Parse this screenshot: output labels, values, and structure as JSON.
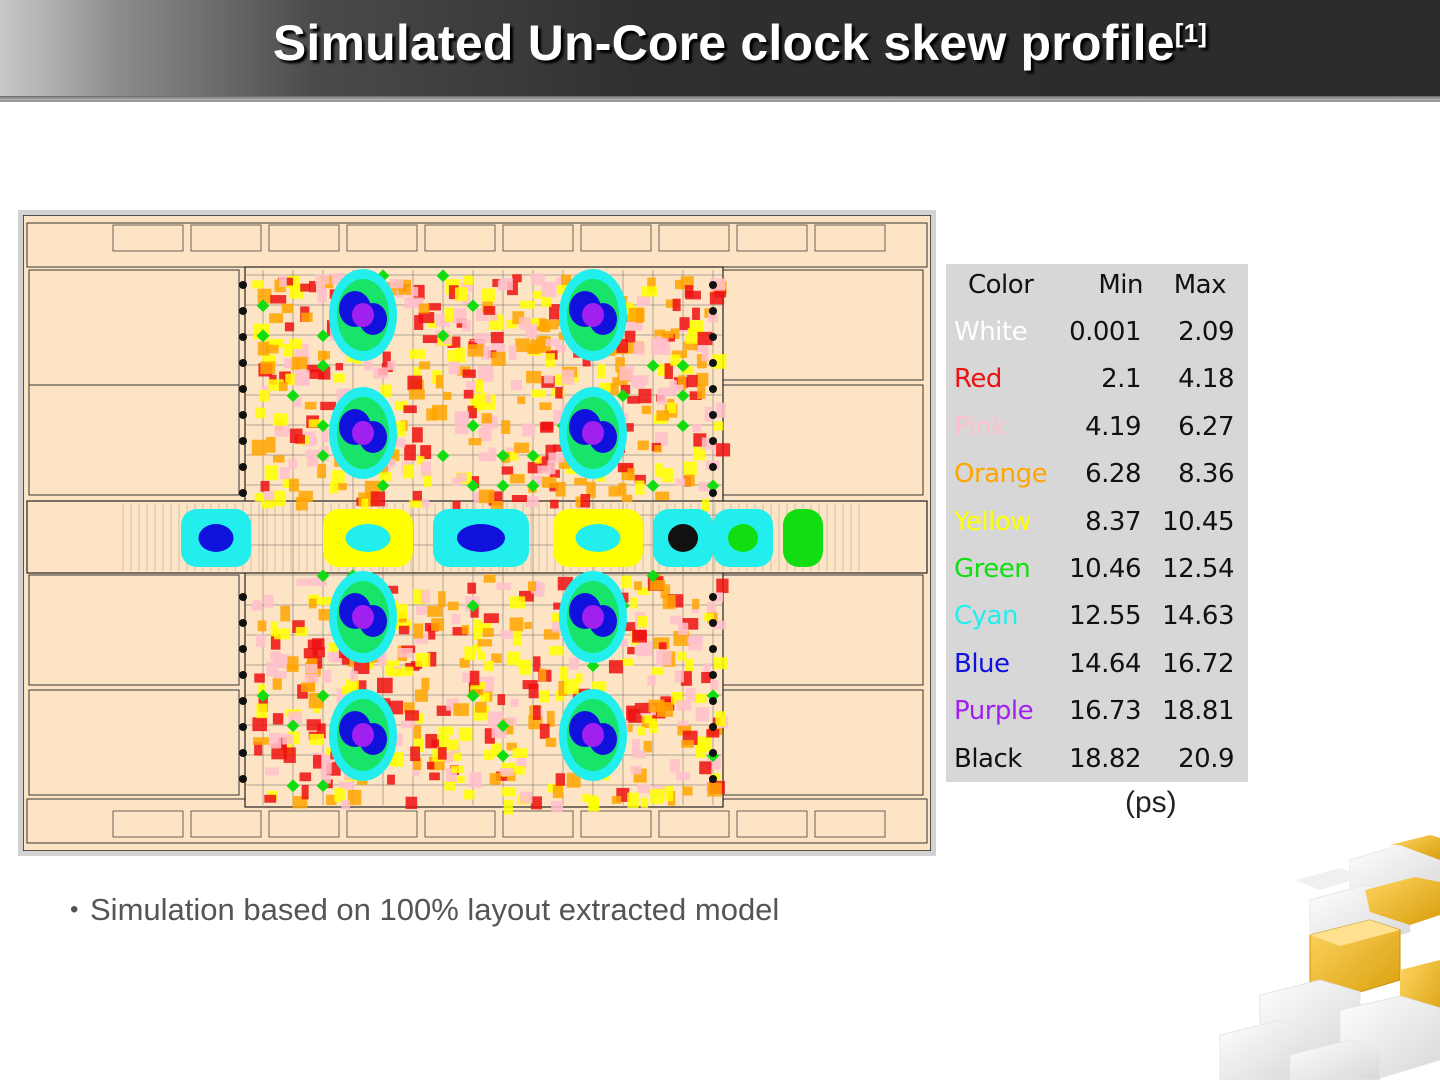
{
  "slide": {
    "title": "Simulated Un-Core clock skew profile",
    "title_ref": "[1]",
    "bullets": [
      {
        "text": "Simulation based on 100% layout extracted model"
      }
    ]
  },
  "legend": {
    "headers": {
      "color": "Color",
      "min": "Min",
      "max": "Max"
    },
    "rows": [
      {
        "name": "White",
        "min": "0.001",
        "max": "2.09",
        "color": "#ffffff"
      },
      {
        "name": "Red",
        "min": "2.1",
        "max": "4.18",
        "color": "#ee1111"
      },
      {
        "name": "Pink",
        "min": "4.19",
        "max": "6.27",
        "color": "#ffc0cb"
      },
      {
        "name": "Orange",
        "min": "6.28",
        "max": "8.36",
        "color": "#ffa500"
      },
      {
        "name": "Yellow",
        "min": "8.37",
        "max": "10.45",
        "color": "#ffff00"
      },
      {
        "name": "Green",
        "min": "10.46",
        "max": "12.54",
        "color": "#11dd11"
      },
      {
        "name": "Cyan",
        "min": "12.55",
        "max": "14.63",
        "color": "#22eeee"
      },
      {
        "name": "Blue",
        "min": "14.64",
        "max": "16.72",
        "color": "#1111dd"
      },
      {
        "name": "Purple",
        "min": "16.73",
        "max": "18.81",
        "color": "#a020f0"
      },
      {
        "name": "Black",
        "min": "18.82",
        "max": "20.9",
        "color": "#111111"
      }
    ],
    "unit": "(ps)"
  },
  "colors": {
    "die_background": "#fde4c4",
    "title_text": "#ffffff"
  }
}
